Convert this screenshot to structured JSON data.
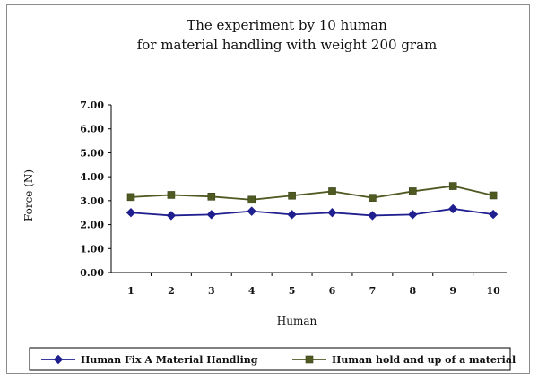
{
  "chart_data": {
    "type": "line",
    "title_lines": [
      "The experiment by 10 human",
      "for material handling with weight 200 gram"
    ],
    "xlabel": "Human",
    "ylabel": "Force (N)",
    "categories": [
      "1",
      "2",
      "3",
      "4",
      "5",
      "6",
      "7",
      "8",
      "9",
      "10"
    ],
    "y_ticks": [
      "0.00",
      "1.00",
      "2.00",
      "3.00",
      "4.00",
      "5.00",
      "6.00",
      "7.00"
    ],
    "ylim": [
      0,
      7
    ],
    "grid": false,
    "legend_position": "bottom",
    "series": [
      {
        "name": "Human Fix A  Material Handling",
        "values": [
          2.5,
          2.38,
          2.42,
          2.56,
          2.42,
          2.5,
          2.38,
          2.42,
          2.66,
          2.43
        ],
        "color": "#1f1f8f",
        "marker": "diamond"
      },
      {
        "name": "Human hold and up of a material",
        "values": [
          3.15,
          3.24,
          3.17,
          3.04,
          3.21,
          3.39,
          3.12,
          3.39,
          3.61,
          3.22
        ],
        "color": "#4e5a22",
        "marker": "square"
      }
    ]
  }
}
